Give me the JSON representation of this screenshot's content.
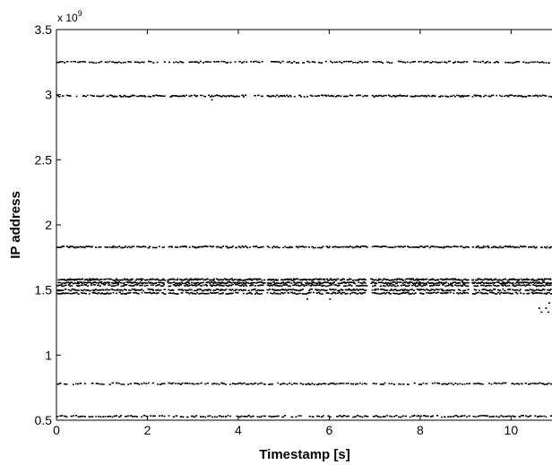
{
  "chart_data": {
    "type": "scatter",
    "title": "",
    "xlabel": "Timestamp [s]",
    "ylabel": "IP address",
    "xlim": [
      0,
      10.9
    ],
    "ylim": [
      0.5,
      3.5
    ],
    "y_multiplier_label": "x 10",
    "y_multiplier_exponent": "9",
    "x_ticks": [
      0,
      2,
      4,
      6,
      8,
      10
    ],
    "x_tick_labels": [
      "0",
      "2",
      "4",
      "6",
      "8",
      "10"
    ],
    "y_ticks": [
      0.5,
      1,
      1.5,
      2,
      2.5,
      3,
      3.5
    ],
    "y_tick_labels": [
      "0.5",
      "1",
      "1.5",
      "2",
      "2.5",
      "3",
      "3.5"
    ],
    "grid": false,
    "marker_color": "#000000",
    "bands": [
      {
        "y": 3.25,
        "density": "medium"
      },
      {
        "y": 2.99,
        "density": "high"
      },
      {
        "y": 1.83,
        "density": "high"
      },
      {
        "y": 1.58,
        "density": "very-high"
      },
      {
        "y": 1.555,
        "density": "very-high"
      },
      {
        "y": 1.535,
        "density": "high"
      },
      {
        "y": 1.5,
        "density": "high"
      },
      {
        "y": 1.475,
        "density": "high"
      },
      {
        "y": 0.78,
        "density": "medium"
      },
      {
        "y": 0.53,
        "density": "medium"
      }
    ],
    "outliers": [
      {
        "x": 3.4,
        "y": 2.96
      },
      {
        "x": 5.5,
        "y": 1.43
      },
      {
        "x": 6.0,
        "y": 1.43
      },
      {
        "x": 10.6,
        "y": 1.36
      },
      {
        "x": 10.65,
        "y": 1.33
      },
      {
        "x": 10.75,
        "y": 1.36
      },
      {
        "x": 10.8,
        "y": 1.33
      },
      {
        "x": 10.82,
        "y": 1.4
      }
    ]
  }
}
